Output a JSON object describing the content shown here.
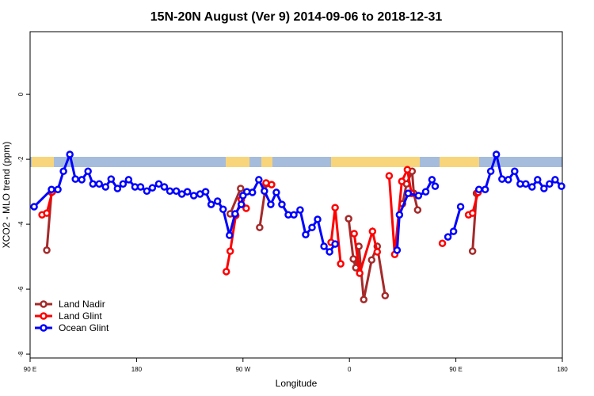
{
  "chart_data": {
    "type": "line",
    "title": "15N-20N August (Ver 9)   2014-09-06 to 2018-12-31",
    "x_label": "Longitude",
    "y_label": "XCO2 - MLO trend (ppm)",
    "xlim": [
      90,
      540
    ],
    "ylim": [
      -8.12,
      1.93
    ],
    "xticks": [
      {
        "value": 90,
        "label": "90 E"
      },
      180,
      {
        "value": 270,
        "label": "90 W"
      },
      {
        "value": 360,
        "label": "0"
      },
      {
        "value": 450,
        "label": "90 E"
      },
      {
        "value": 540,
        "label": "180"
      }
    ],
    "yticks": [
      0,
      -2,
      -4,
      -6,
      -8
    ],
    "legend": "bottom-left",
    "series": [
      {
        "name": "Land Nadir",
        "color": "#a52a2a",
        "x": [
          104.1,
          108.1,
          null,
          259.2,
          268.0,
          null,
          284.1,
          289.5,
          null,
          359.3,
          363.3,
          365.4,
          368.0,
          372.1,
          378.8,
          383.5,
          390.2,
          null,
          404.9,
          408.3,
          413.0,
          414.4,
          417.7,
          null,
          464.1,
          467.4
        ],
        "values": [
          -4.8,
          -3.02,
          null,
          -3.68,
          -2.9,
          null,
          -4.1,
          -2.76,
          null,
          -3.83,
          -5.07,
          -5.34,
          -4.68,
          -6.32,
          -5.1,
          -4.68,
          -6.2,
          null,
          -3.37,
          -2.76,
          -2.37,
          -3.05,
          -3.56,
          null,
          -4.83,
          -3.05
        ]
      },
      {
        "name": "Land Glint",
        "color": "#ff0000",
        "x": [
          100.1,
          104.1,
          108.8,
          null,
          255.9,
          259.2,
          263.9,
          268.6,
          272.7,
          null,
          289.5,
          294.2,
          null,
          344.5,
          347.9,
          352.6,
          null,
          364.0,
          368.7,
          379.5,
          383.5,
          null,
          393.6,
          398.3,
          404.3,
          409.0,
          412.4,
          null,
          438.6,
          null,
          460.7,
          464.1,
          468.8
        ],
        "values": [
          -3.71,
          -3.66,
          -3.0,
          null,
          -5.46,
          -4.83,
          -3.73,
          -3.24,
          -3.51,
          null,
          -2.73,
          -2.78,
          null,
          -4.56,
          -3.49,
          -5.22,
          null,
          -4.29,
          -5.51,
          -4.22,
          -4.85,
          null,
          -2.51,
          -4.93,
          -2.68,
          -2.32,
          -3.05,
          null,
          -4.59,
          null,
          -3.71,
          -3.66,
          -3.02
        ]
      },
      {
        "name": "Ocean Glint",
        "color": "#0000ff",
        "x": [
          93.4,
          108.1,
          113.5,
          118.2,
          123.6,
          128.3,
          133.7,
          139.0,
          143.1,
          148.4,
          153.8,
          158.5,
          163.9,
          168.6,
          173.3,
          178.7,
          183.4,
          188.7,
          193.4,
          198.8,
          203.5,
          208.2,
          213.6,
          218.3,
          223.0,
          228.4,
          233.7,
          238.4,
          243.1,
          248.5,
          253.2,
          258.6,
          263.3,
          268.6,
          270.0,
          273.3,
          278.0,
          283.4,
          288.1,
          293.5,
          298.2,
          302.9,
          308.3,
          313.0,
          318.3,
          323.0,
          328.4,
          333.1,
          338.5,
          343.2,
          347.9,
          null,
          400.3,
          402.3,
          409.7,
          418.4,
          424.5,
          429.8,
          432.5,
          null,
          443.3,
          448.0,
          454.0,
          null,
          469.5,
          474.8,
          479.5,
          484.2,
          489.0,
          494.3,
          499.7,
          504.4,
          509.1,
          514.4,
          519.1,
          524.5,
          529.2,
          533.9,
          539.3
        ],
        "values": [
          -3.46,
          -2.93,
          -2.93,
          -2.37,
          -1.85,
          -2.61,
          -2.63,
          -2.37,
          -2.76,
          -2.76,
          -2.85,
          -2.61,
          -2.9,
          -2.76,
          -2.63,
          -2.85,
          -2.85,
          -2.98,
          -2.88,
          -2.76,
          -2.85,
          -2.98,
          -2.98,
          -3.07,
          -3.0,
          -3.12,
          -3.07,
          -3.0,
          -3.39,
          -3.29,
          -3.54,
          -4.34,
          -3.68,
          -3.39,
          -3.12,
          -3.0,
          -3.02,
          -2.63,
          -2.98,
          -3.39,
          -3.02,
          -3.39,
          -3.71,
          -3.71,
          -3.56,
          -4.32,
          -4.1,
          -3.85,
          -4.68,
          -4.85,
          -4.61,
          null,
          -4.8,
          -3.71,
          -3.05,
          -3.12,
          -3.0,
          -2.63,
          -2.83,
          null,
          -4.39,
          -4.22,
          -3.46,
          null,
          -2.93,
          -2.93,
          -2.37,
          -1.85,
          -2.61,
          -2.63,
          -2.37,
          -2.76,
          -2.76,
          -2.85,
          -2.63,
          -2.9,
          -2.76,
          -2.63,
          -2.83
        ]
      }
    ]
  }
}
